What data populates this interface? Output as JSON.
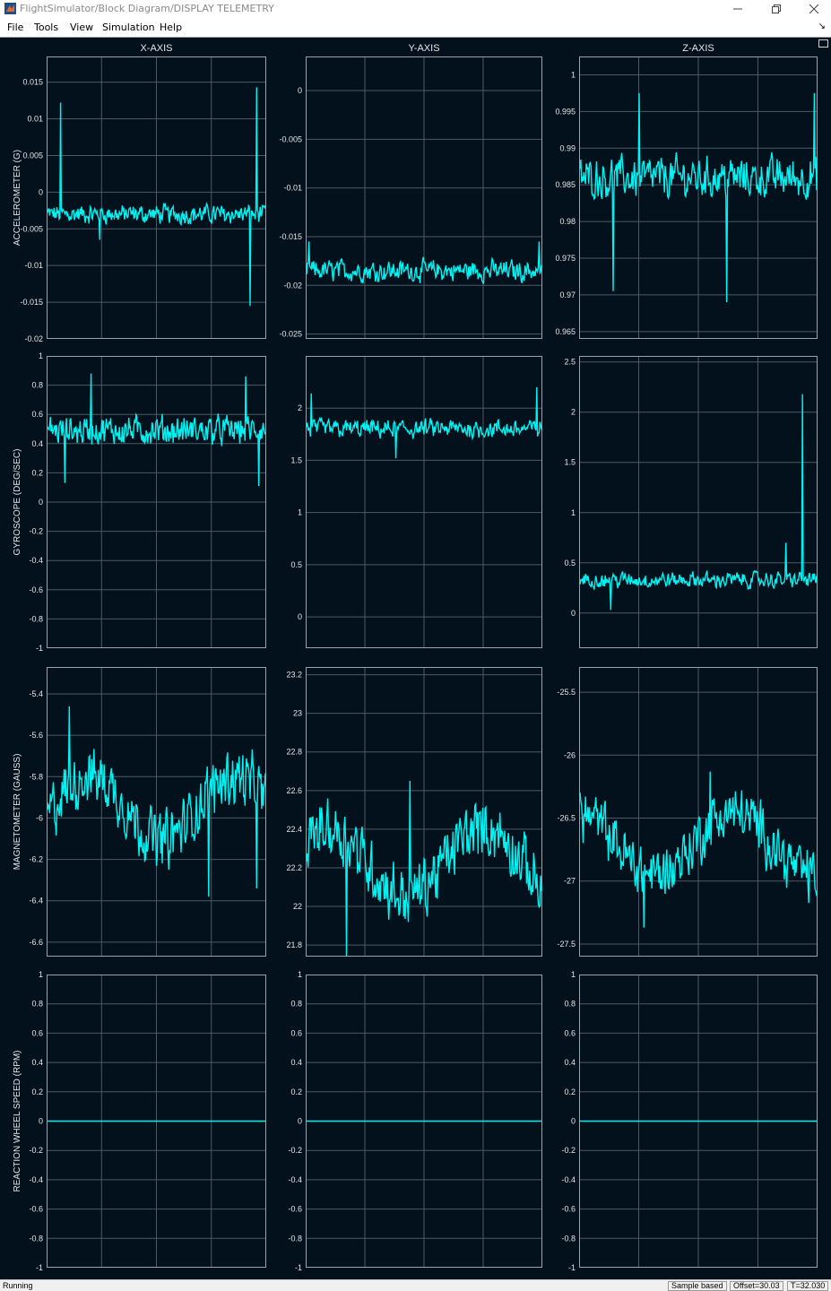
{
  "window": {
    "title": "FlightSimulator/Block Diagram/DISPLAY TELEMETRY"
  },
  "menu": [
    "File",
    "Tools",
    "View",
    "Simulation",
    "Help"
  ],
  "columns": [
    "X-AXIS",
    "Y-AXIS",
    "Z-AXIS"
  ],
  "colors": {
    "background": "#03111d",
    "grid": "#4d5a66",
    "trace": "#00f2f2",
    "axis_text": "#e6e6e6"
  },
  "icons": {
    "minimize": "minimize-icon",
    "restore": "restore-icon",
    "close": "close-icon",
    "undock": "undock-icon"
  },
  "status": {
    "left": "Running",
    "sample": "Sample based",
    "offset": "Offset=30.03",
    "time": "T=32.030"
  },
  "chart_data": [
    {
      "type": "line",
      "ylabel": "ACCELEROMETER (G)",
      "panel": "accelerometer-x",
      "ylim": [
        -0.02,
        0.0185
      ],
      "yticks": [
        -0.02,
        -0.015,
        -0.01,
        -0.005,
        0,
        0.005,
        0.01,
        0.015
      ],
      "ytick_labels": [
        "-0.02",
        "-0.015",
        "-0.01",
        "-0.005",
        "0",
        "0.005",
        "0.01",
        "0.015"
      ],
      "signal": {
        "base": -0.003,
        "noise": 0.0013,
        "spikes": [
          [
            0.06,
            0.0122
          ],
          [
            0.93,
            -0.0155
          ],
          [
            0.96,
            0.0143
          ],
          [
            0.24,
            -0.0065
          ]
        ]
      }
    },
    {
      "type": "line",
      "panel": "accelerometer-y",
      "ylim": [
        -0.0255,
        0.0035
      ],
      "yticks": [
        -0.025,
        -0.02,
        -0.015,
        -0.01,
        -0.005,
        0
      ],
      "ytick_labels": [
        "-0.025",
        "-0.02",
        "-0.015",
        "-0.01",
        "-0.005",
        "0"
      ],
      "signal": {
        "base": -0.0185,
        "noise": 0.0011,
        "spikes": [
          [
            0.01,
            -0.0155
          ],
          [
            0.99,
            -0.0155
          ]
        ]
      }
    },
    {
      "type": "line",
      "panel": "accelerometer-z",
      "ylim": [
        0.964,
        1.0025
      ],
      "yticks": [
        0.965,
        0.97,
        0.975,
        0.98,
        0.985,
        0.99,
        0.995,
        1
      ],
      "ytick_labels": [
        "0.965",
        "0.97",
        "0.975",
        "0.98",
        "0.985",
        "0.99",
        "0.995",
        "1"
      ],
      "signal": {
        "base": 0.986,
        "noise": 0.0028,
        "spikes": [
          [
            0.25,
            0.9975
          ],
          [
            0.14,
            0.9705
          ],
          [
            0.62,
            0.969
          ],
          [
            0.99,
            0.9975
          ]
        ]
      }
    },
    {
      "type": "line",
      "ylabel": "GYROSCOPE (DEG/SEC)",
      "panel": "gyroscope-x",
      "ylim": [
        -1,
        1
      ],
      "yticks": [
        -1,
        -0.8,
        -0.6,
        -0.4,
        -0.2,
        0,
        0.2,
        0.4,
        0.6,
        0.8,
        1
      ],
      "ytick_labels": [
        "-1",
        "-0.8",
        "-0.6",
        "-0.4",
        "-0.2",
        "0",
        "0.2",
        "0.4",
        "0.6",
        "0.8",
        "1"
      ],
      "signal": {
        "base": 0.49,
        "noise": 0.1,
        "spikes": [
          [
            0.2,
            0.88
          ],
          [
            0.91,
            0.86
          ],
          [
            0.97,
            0.11
          ],
          [
            0.08,
            0.13
          ]
        ]
      }
    },
    {
      "type": "line",
      "panel": "gyroscope-y",
      "ylim": [
        -0.3,
        2.5
      ],
      "yticks": [
        0,
        0.5,
        1,
        1.5,
        2
      ],
      "ytick_labels": [
        "0",
        "0.5",
        "1",
        "1.5",
        "2"
      ],
      "signal": {
        "base": 1.8,
        "noise": 0.09,
        "spikes": [
          [
            0.02,
            2.14
          ],
          [
            0.98,
            2.2
          ],
          [
            0.38,
            1.52
          ]
        ]
      }
    },
    {
      "type": "line",
      "panel": "gyroscope-z",
      "ylim": [
        -0.35,
        2.56
      ],
      "yticks": [
        0,
        0.5,
        1,
        1.5,
        2,
        2.5
      ],
      "ytick_labels": [
        "0",
        "0.5",
        "1",
        "1.5",
        "2",
        "2.5"
      ],
      "signal": {
        "base": 0.33,
        "noise": 0.08,
        "spikes": [
          [
            0.94,
            2.18
          ],
          [
            0.87,
            0.7
          ],
          [
            0.13,
            0.03
          ]
        ]
      }
    },
    {
      "type": "line",
      "ylabel": "MAGNETOMETER (GAUSS)",
      "panel": "magnetometer-x",
      "ylim": [
        -6.67,
        -5.27
      ],
      "yticks": [
        -6.6,
        -6.4,
        -6.2,
        -6,
        -5.8,
        -5.6,
        -5.4
      ],
      "ytick_labels": [
        "-6.6",
        "-6.4",
        "-6.2",
        "-6",
        "-5.8",
        "-5.6",
        "-5.4"
      ],
      "signal": {
        "base": -5.95,
        "noise": 0.14,
        "spikes": [
          [
            0.1,
            -5.46
          ],
          [
            0.74,
            -6.38
          ],
          [
            0.96,
            -6.34
          ]
        ]
      }
    },
    {
      "type": "line",
      "panel": "magnetometer-y",
      "ylim": [
        21.74,
        23.24
      ],
      "yticks": [
        21.8,
        22,
        22.2,
        22.4,
        22.6,
        22.8,
        23,
        23.2
      ],
      "ytick_labels": [
        "21.8",
        "22",
        "22.2",
        "22.4",
        "22.6",
        "22.8",
        "23",
        "23.2"
      ],
      "signal": {
        "base": 22.23,
        "noise": 0.16,
        "spikes": [
          [
            0.17,
            21.72
          ],
          [
            0.44,
            22.65
          ]
        ]
      }
    },
    {
      "type": "line",
      "panel": "magnetometer-z",
      "ylim": [
        -27.6,
        -25.3
      ],
      "yticks": [
        -27.5,
        -27,
        -26.5,
        -26,
        -25.5
      ],
      "ytick_labels": [
        "-27.5",
        "-27",
        "-26.5",
        "-26",
        "-25.5"
      ],
      "signal": {
        "base": -26.7,
        "noise": 0.22,
        "spikes": [
          [
            0.55,
            -26.13
          ],
          [
            0.27,
            -27.37
          ]
        ]
      }
    },
    {
      "type": "line",
      "ylabel": "REACTION WHEEL SPEED (RPM)",
      "panel": "reaction-wheel-x",
      "ylim": [
        -1,
        1
      ],
      "yticks": [
        -1,
        -0.8,
        -0.6,
        -0.4,
        -0.2,
        0,
        0.2,
        0.4,
        0.6,
        0.8,
        1
      ],
      "ytick_labels": [
        "-1",
        "-0.8",
        "-0.6",
        "-0.4",
        "-0.2",
        "0",
        "0.2",
        "0.4",
        "0.6",
        "0.8",
        "1"
      ],
      "signal": {
        "base": 0,
        "noise": 0,
        "spikes": []
      }
    },
    {
      "type": "line",
      "panel": "reaction-wheel-y",
      "ylim": [
        -1,
        1
      ],
      "yticks": [
        -1,
        -0.8,
        -0.6,
        -0.4,
        -0.2,
        0,
        0.2,
        0.4,
        0.6,
        0.8,
        1
      ],
      "ytick_labels": [
        "-1",
        "-0.8",
        "-0.6",
        "-0.4",
        "-0.2",
        "0",
        "0.2",
        "0.4",
        "0.6",
        "0.8",
        "1"
      ],
      "signal": {
        "base": 0,
        "noise": 0,
        "spikes": []
      }
    },
    {
      "type": "line",
      "panel": "reaction-wheel-z",
      "ylim": [
        -1,
        1
      ],
      "yticks": [
        -1,
        -0.8,
        -0.6,
        -0.4,
        -0.2,
        0,
        0.2,
        0.4,
        0.6,
        0.8,
        1
      ],
      "ytick_labels": [
        "-1",
        "-0.8",
        "-0.6",
        "-0.4",
        "-0.2",
        "0",
        "0.2",
        "0.4",
        "0.6",
        "0.8",
        "1"
      ],
      "signal": {
        "base": 0,
        "noise": 0,
        "spikes": []
      }
    }
  ]
}
